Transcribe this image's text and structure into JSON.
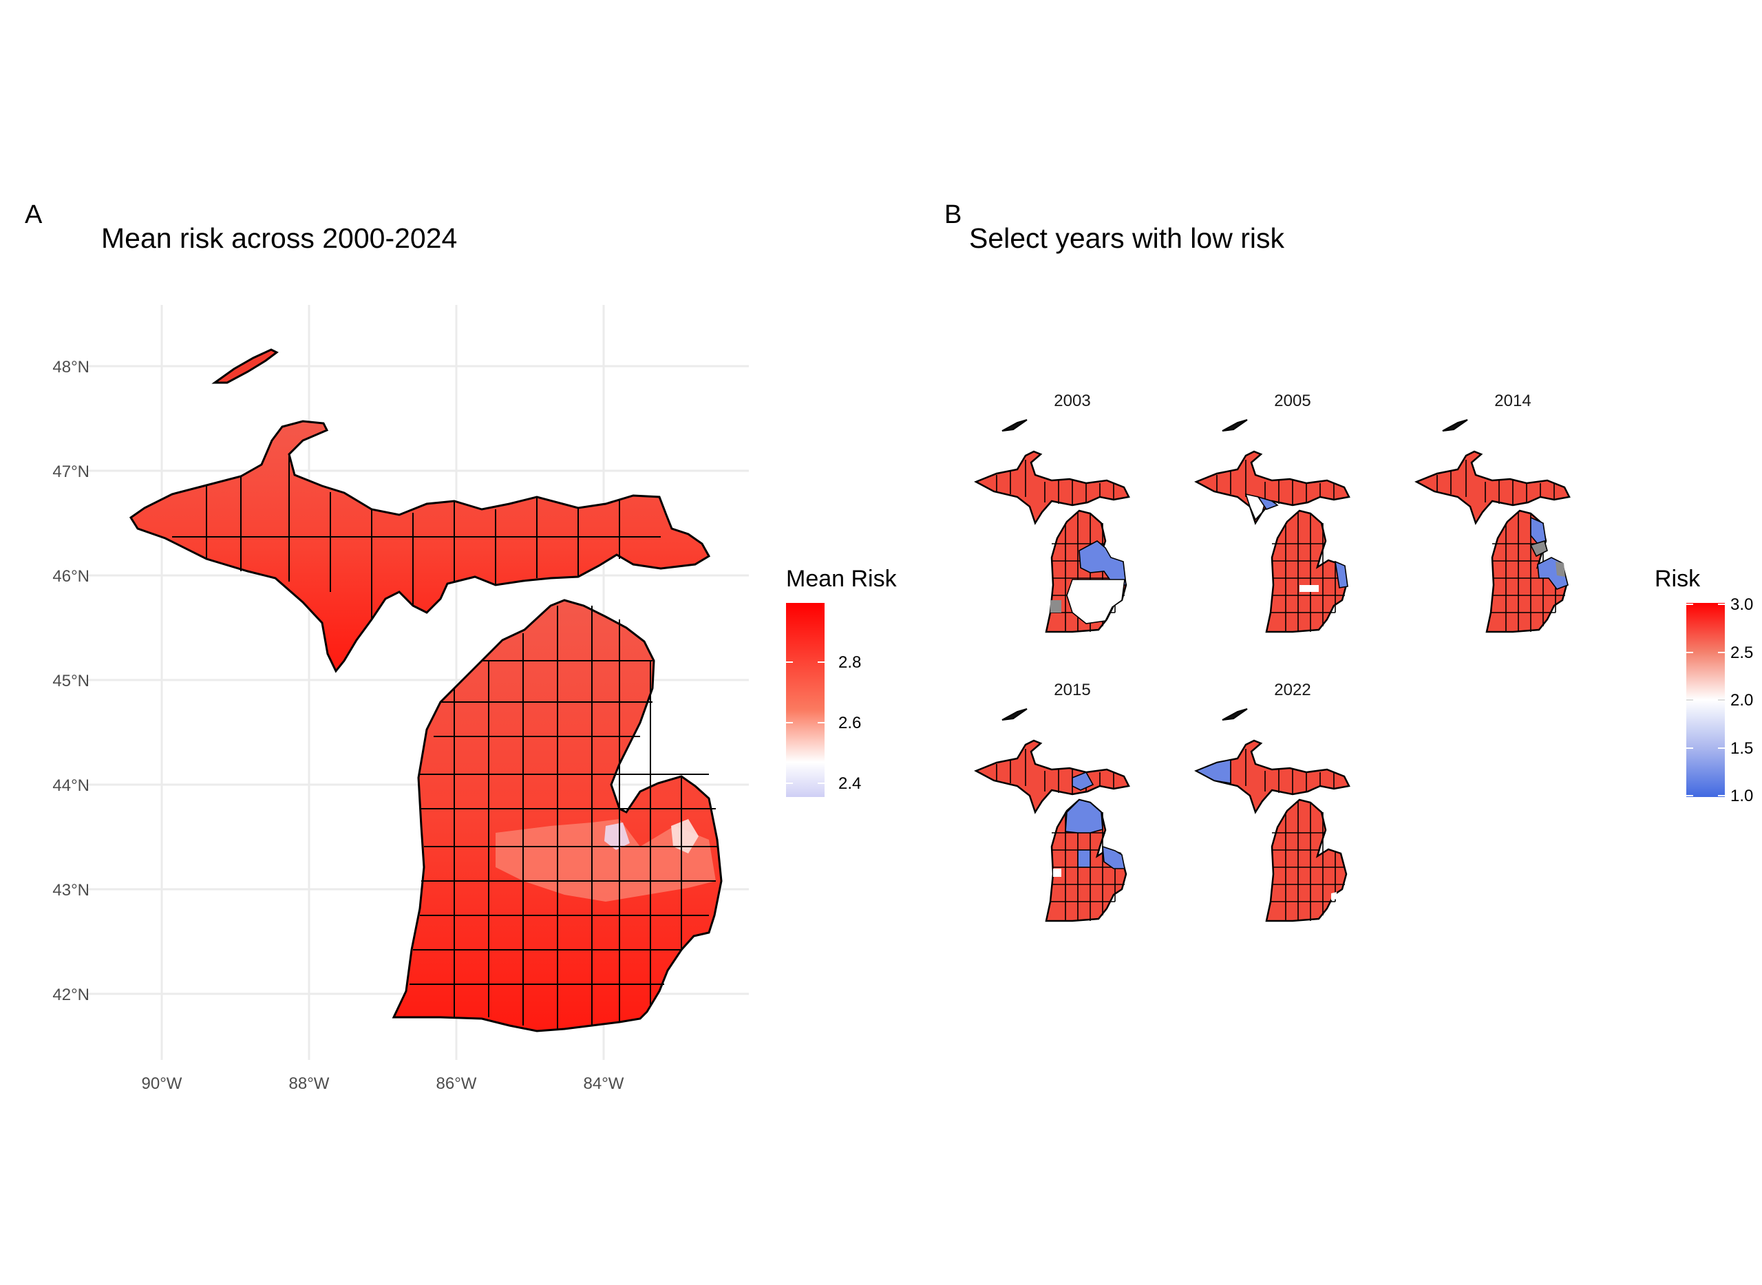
{
  "panel_a": {
    "tag": "A",
    "title": "Mean risk across 2000-2024",
    "y_ticks": [
      "48°N",
      "47°N",
      "46°N",
      "45°N",
      "44°N",
      "43°N",
      "42°N"
    ],
    "x_ticks": [
      "90°W",
      "88°W",
      "86°W",
      "84°W"
    ],
    "legend": {
      "title": "Mean Risk",
      "ticks": [
        "2.8",
        "2.6",
        "2.4"
      ],
      "colors": {
        "high": "#ff0000",
        "mid": "#ffffff",
        "low": "#cfcff5"
      }
    }
  },
  "panel_b": {
    "tag": "B",
    "title": "Select years with low risk",
    "facets": [
      {
        "label": "2003",
        "blue_regions": [
          "central-east lower peninsula",
          "thumb"
        ],
        "white_regions": [
          "central lower peninsula"
        ]
      },
      {
        "label": "2005",
        "blue_regions": [
          "western upper peninsula",
          "thumb"
        ],
        "white_regions": [
          "mid-michigan"
        ]
      },
      {
        "label": "2014",
        "blue_regions": [
          "northeast lower peninsula",
          "thumb"
        ],
        "white_regions": []
      },
      {
        "label": "2015",
        "blue_regions": [
          "northern lower peninsula",
          "eastern upper peninsula",
          "thumb"
        ],
        "white_regions": []
      },
      {
        "label": "2022",
        "blue_regions": [
          "western upper peninsula"
        ],
        "white_regions": []
      }
    ],
    "legend": {
      "title": "Risk",
      "ticks": [
        "3.0",
        "2.5",
        "2.0",
        "1.5",
        "1.0"
      ],
      "colors": {
        "high": "#ff0000",
        "mid": "#ffffff",
        "low": "#4169e1",
        "na": "#8c8c8c"
      }
    }
  }
}
